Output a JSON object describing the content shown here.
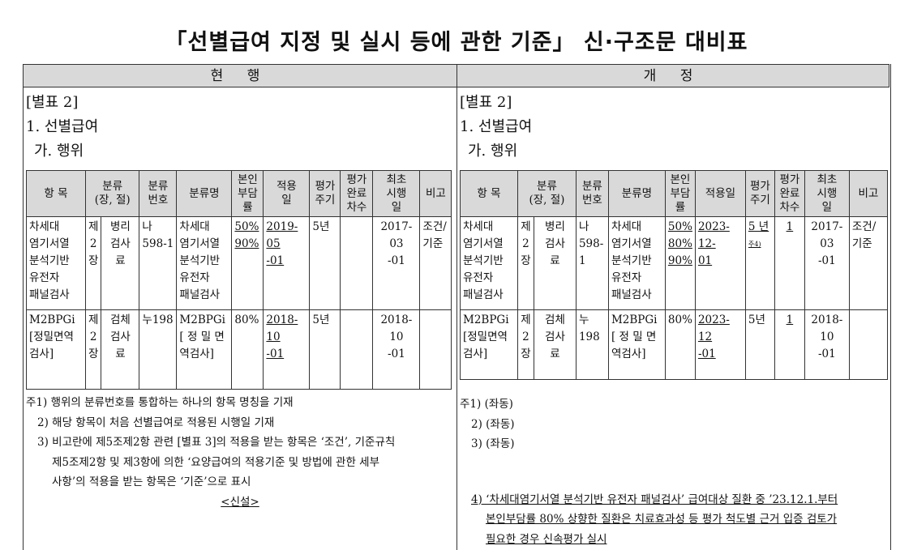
{
  "title": "「선별급여 지정 및 실시 등에 관한 기준」 신·구조문 대비표",
  "columns": {
    "current": "현 행",
    "revised": "개 정"
  },
  "table_headers": [
    "항 목",
    "분류\n(장, 절)",
    "분류\n번호",
    "분류명",
    "본인\n부담\n률",
    "적용\n일",
    "평가\n주기",
    "평가\n완료\n차수",
    "최초\n시행\n일",
    "비고"
  ],
  "table_headers_revised": [
    "항 목",
    "분류\n(장, 절)",
    "분류\n번호",
    "분류명",
    "본인\n부담\n률",
    "적용일",
    "평가\n주기",
    "평가\n완료\n차수",
    "최초\n시행\n일",
    "비고"
  ],
  "current": {
    "annex": "[별표 2]",
    "section": "1. 선별급여",
    "subsection": "가. 행위",
    "rows": [
      {
        "item": "차세대\n염기서열\n분석기반\n유전자\n패널검사",
        "chapter": "제\n2\n장",
        "section": "병리\n검사\n료",
        "code": "나\n598-1",
        "name": "차세대\n염기서열\n분석기반\n유전자\n패널검사",
        "rate": "50%\n90%",
        "rate_u": true,
        "date": "2019-05\n-01",
        "date_u": true,
        "cycle": "5년",
        "cycle_u": false,
        "done": "",
        "first": "2017-03\n-01",
        "note": "조건/\n기준"
      },
      {
        "item": "M2BPGi\n[정밀면역\n검사]",
        "chapter": "제\n2\n장",
        "section": "검체\n검사\n료",
        "code": "누198",
        "name": "M2BPGi\n[ 정 밀 면\n역검사]",
        "rate": "80%",
        "rate_u": false,
        "date": "2018-10\n-01",
        "date_u": true,
        "cycle": "5년",
        "cycle_u": false,
        "done": "",
        "first": "2018-10\n-01",
        "note": ""
      }
    ],
    "notes": [
      "주1) 행위의 분류번호를 통합하는 하나의 항목 명칭을 기재",
      "2) 해당 항목이 처음 선별급여로 적용된 시행일 기재",
      "3) 비고란에 제5조제2항 관련 [별표 3]의 적용을 받는 항목은 ‘조건’, 기준규칙",
      "제5조제2항 및 제3항에 의한 ‘요양급여의 적용기준 및 방법에 관한 세부",
      "사항’의 적용을 받는 항목은 ‘기준’으로 표시"
    ],
    "new_mark": "<신설>"
  },
  "revised": {
    "annex": "[별표 2]",
    "section": "1. 선별급여",
    "subsection": "가. 행위",
    "rows": [
      {
        "item": "차세대\n염기서열\n분석기반\n유전자\n패널검사",
        "chapter": "제\n2\n장",
        "section": "병리\n검사\n료",
        "code": "나\n598-1",
        "name": "차세대\n염기서열\n분석기반\n유전자\n패널검사",
        "rate": "50%\n80%\n90%",
        "rate_u": true,
        "date": "2023-12-\n01",
        "date_u": true,
        "cycle": "5 년",
        "cycle_sup": "주4)",
        "cycle_u": true,
        "done": "1",
        "first": "2017-03\n-01",
        "note": "조건/\n기준"
      },
      {
        "item": "M2BPGi\n[정밀면역\n검사]",
        "chapter": "제\n2\n장",
        "section": "검체\n검사\n료",
        "code": "누198",
        "name": "M2BPGi\n[ 정 밀 면\n역검사]",
        "rate": "80%",
        "rate_u": false,
        "date": "2023-12\n-01",
        "date_u": true,
        "cycle": "5년",
        "cycle_u": false,
        "done": "1",
        "first": "2018-10\n-01",
        "note": ""
      }
    ],
    "notes": [
      "주1) (좌동)",
      "2) (좌동)",
      "3) (좌동)"
    ],
    "note4": [
      "4) ‘차세대염기서열 분석기반 유전자 패널검사’ 급여대상 질환 중 ’23.12.1.부터",
      "본인부담률 80% 상향한 질환은 치료효과성 등 평가 척도별 근거 입증 검토가",
      "필요한 경우 신속평가 실시"
    ]
  }
}
